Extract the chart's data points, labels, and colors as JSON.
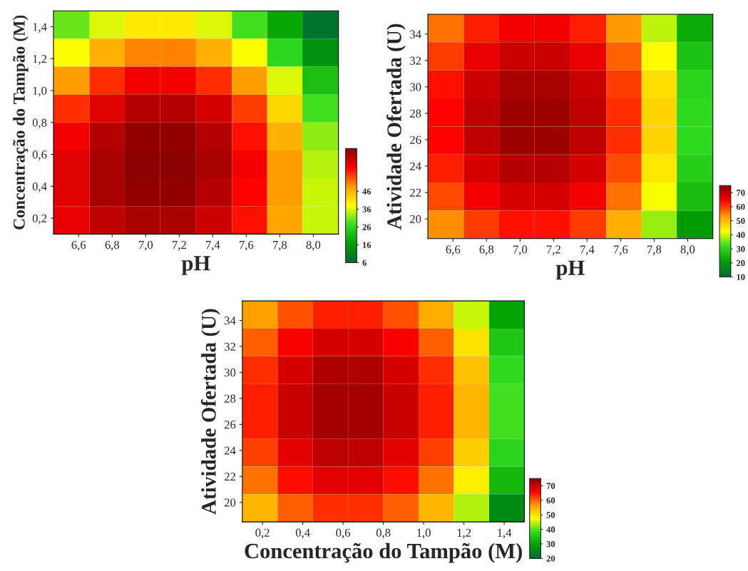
{
  "chart_data": [
    {
      "type": "heatmap",
      "xlabel": "pH",
      "ylabel": "Concentração do Tampão (M)",
      "x": [
        6.56,
        6.77,
        6.98,
        7.19,
        7.41,
        7.62,
        7.83,
        8.04
      ],
      "y": [
        1.41,
        1.24,
        1.06,
        0.89,
        0.71,
        0.54,
        0.36,
        0.19
      ],
      "xlim": [
        6.45,
        8.15
      ],
      "ylim": [
        0.1,
        1.5
      ],
      "xticks": [
        {
          "value": 6.6,
          "label": "6,6"
        },
        {
          "value": 6.8,
          "label": "6,8"
        },
        {
          "value": 7.0,
          "label": "7,0"
        },
        {
          "value": 7.2,
          "label": "7,2"
        },
        {
          "value": 7.4,
          "label": "7,4"
        },
        {
          "value": 7.6,
          "label": "7,6"
        },
        {
          "value": 7.8,
          "label": "7,8"
        },
        {
          "value": 8.0,
          "label": "8,0"
        }
      ],
      "yticks": [
        {
          "value": 0.2,
          "label": "0,2"
        },
        {
          "value": 0.4,
          "label": "0,4"
        },
        {
          "value": 0.6,
          "label": "0,6"
        },
        {
          "value": 0.8,
          "label": "0,8"
        },
        {
          "value": 1.0,
          "label": "1,0"
        },
        {
          "value": 1.2,
          "label": "1,2"
        },
        {
          "value": 1.4,
          "label": "1,4"
        }
      ],
      "cells": [
        [
          30,
          36,
          40,
          40,
          36,
          28,
          18,
          8
        ],
        [
          38,
          46,
          50,
          50,
          46,
          38,
          26,
          14
        ],
        [
          48,
          56,
          60,
          60,
          56,
          48,
          36,
          22
        ],
        [
          56,
          62,
          66,
          66,
          63,
          55,
          42,
          28
        ],
        [
          60,
          66,
          69,
          69,
          66,
          58,
          46,
          32
        ],
        [
          62,
          67,
          70,
          70,
          67,
          60,
          48,
          34
        ],
        [
          62,
          67,
          69,
          69,
          66,
          59,
          48,
          35
        ],
        [
          61,
          65,
          67,
          67,
          64,
          58,
          47,
          35
        ]
      ],
      "clim": [
        6,
        70
      ],
      "cticks": [
        46,
        36,
        26,
        16,
        6
      ],
      "colors": [
        "#006837",
        "#00a000",
        "#33dd22",
        "#ffff00",
        "#ff9900",
        "#ff0000",
        "#8b0000"
      ]
    },
    {
      "type": "heatmap",
      "xlabel": "pH",
      "ylabel": "Atividade Ofertada (U)",
      "x": [
        6.56,
        6.77,
        6.98,
        7.19,
        7.41,
        7.62,
        7.83,
        8.04
      ],
      "y": [
        34.44,
        32.31,
        30.19,
        28.06,
        25.94,
        23.81,
        21.69,
        19.56
      ],
      "xlim": [
        6.45,
        8.15
      ],
      "ylim": [
        18.5,
        35.5
      ],
      "xticks": [
        {
          "value": 6.6,
          "label": "6,6"
        },
        {
          "value": 6.8,
          "label": "6,8"
        },
        {
          "value": 7.0,
          "label": "7,0"
        },
        {
          "value": 7.2,
          "label": "7,2"
        },
        {
          "value": 7.4,
          "label": "7,4"
        },
        {
          "value": 7.6,
          "label": "7,6"
        },
        {
          "value": 7.8,
          "label": "7,8"
        },
        {
          "value": 8.0,
          "label": "8,0"
        }
      ],
      "yticks": [
        20,
        22,
        24,
        26,
        28,
        30,
        32,
        34
      ],
      "cells": [
        [
          56,
          62,
          65,
          65,
          62,
          53,
          39,
          23
        ],
        [
          60,
          66,
          69,
          69,
          66,
          57,
          43,
          27
        ],
        [
          63,
          69,
          72,
          72,
          69,
          60,
          46,
          30
        ],
        [
          64,
          70,
          73,
          73,
          70,
          61,
          47,
          31
        ],
        [
          64,
          70,
          73,
          73,
          70,
          61,
          47,
          31
        ],
        [
          62,
          68,
          71,
          71,
          68,
          59,
          45,
          29
        ],
        [
          59,
          65,
          68,
          68,
          65,
          56,
          42,
          26
        ],
        [
          54,
          60,
          63,
          63,
          60,
          51,
          37,
          20
        ]
      ],
      "clim": [
        10,
        75
      ],
      "cticks": [
        70,
        60,
        50,
        40,
        30,
        20,
        10
      ],
      "colors": [
        "#006837",
        "#00a000",
        "#33dd22",
        "#ffff00",
        "#ff9900",
        "#ff0000",
        "#8b0000"
      ]
    },
    {
      "type": "heatmap",
      "xlabel": "Concentração do Tampão (M)",
      "ylabel": "Atividade Ofertada (U)",
      "x": [
        0.19,
        0.36,
        0.54,
        0.71,
        0.89,
        1.06,
        1.24,
        1.41
      ],
      "y": [
        34.44,
        32.31,
        30.19,
        28.06,
        25.94,
        23.81,
        21.69,
        19.56
      ],
      "xlim": [
        0.1,
        1.5
      ],
      "ylim": [
        18.5,
        35.5
      ],
      "xticks": [
        {
          "value": 0.2,
          "label": "0,2"
        },
        {
          "value": 0.4,
          "label": "0,4"
        },
        {
          "value": 0.6,
          "label": "0,6"
        },
        {
          "value": 0.8,
          "label": "0,8"
        },
        {
          "value": 1.0,
          "label": "1,0"
        },
        {
          "value": 1.2,
          "label": "1,2"
        },
        {
          "value": 1.4,
          "label": "1,4"
        }
      ],
      "yticks": [
        20,
        22,
        24,
        26,
        28,
        30,
        32,
        34
      ],
      "cells": [
        [
          56,
          61,
          64,
          64,
          61,
          55,
          45,
          30
        ],
        [
          60,
          66,
          69,
          69,
          66,
          60,
          50,
          35
        ],
        [
          63,
          69,
          72,
          72,
          69,
          63,
          53,
          38
        ],
        [
          64,
          70,
          73,
          73,
          70,
          64,
          54,
          39
        ],
        [
          64,
          70,
          73,
          73,
          70,
          64,
          54,
          39
        ],
        [
          62,
          68,
          71,
          71,
          68,
          62,
          52,
          37
        ],
        [
          59,
          65,
          68,
          68,
          65,
          59,
          49,
          33
        ],
        [
          54,
          60,
          63,
          63,
          60,
          54,
          44,
          26
        ]
      ],
      "clim": [
        20,
        75
      ],
      "cticks": [
        70,
        60,
        50,
        40,
        30,
        20
      ],
      "colors": [
        "#006837",
        "#00a000",
        "#33dd22",
        "#ffff00",
        "#ff9900",
        "#ff0000",
        "#8b0000"
      ]
    }
  ]
}
